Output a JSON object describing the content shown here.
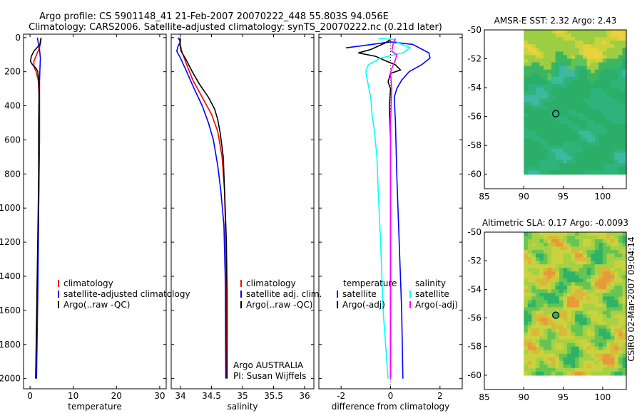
{
  "header": {
    "title_line1": "Argo profile: CS 5901148_41 21-Feb-2007 20070222_448 55.803S 94.056E",
    "title_line2": "Climatology: CARS2006. Satellite-adjusted climatology: synTS_20070222.nc (0.21d later)"
  },
  "side_label": "CSIRO 02-Mar-2007 09:04:14",
  "colors": {
    "climatology": "#ff0000",
    "satellite": "#0000ff",
    "argo": "#000000",
    "sal_satellite": "#00ffff",
    "sal_argo": "#ff00ff"
  },
  "chart_data": [
    {
      "type": "line",
      "name": "temperature-profile",
      "xlabel": "temperature",
      "ylabel": "",
      "xlim": [
        -1.5,
        31.5
      ],
      "ylim": [
        2060,
        -20
      ],
      "xticks": [
        0,
        10,
        20,
        30
      ],
      "yticks": [
        0,
        200,
        400,
        600,
        800,
        1000,
        1200,
        1400,
        1600,
        1800,
        2000
      ],
      "legend": [
        "climatology",
        "satellite-adjusted climatology",
        "Argo(..raw -QC)"
      ],
      "series": [
        {
          "name": "climatology",
          "color": "red",
          "points": [
            [
              2.6,
              0
            ],
            [
              2.5,
              20
            ],
            [
              2.2,
              60
            ],
            [
              1.5,
              100
            ],
            [
              0.9,
              140
            ],
            [
              0.9,
              170
            ],
            [
              1.4,
              200
            ],
            [
              1.9,
              250
            ],
            [
              2.1,
              350
            ],
            [
              2.1,
              600
            ],
            [
              2.0,
              1000
            ],
            [
              1.7,
              1500
            ],
            [
              1.4,
              2000
            ]
          ]
        },
        {
          "name": "satellite-adjusted climatology",
          "color": "blue",
          "points": [
            [
              1.7,
              0
            ],
            [
              1.9,
              30
            ],
            [
              2.2,
              70
            ],
            [
              2.4,
              120
            ],
            [
              2.3,
              180
            ],
            [
              2.2,
              260
            ],
            [
              2.2,
              400
            ],
            [
              2.2,
              600
            ],
            [
              2.1,
              800
            ],
            [
              2.0,
              1000
            ],
            [
              1.8,
              1500
            ],
            [
              1.5,
              2000
            ]
          ]
        },
        {
          "name": "Argo(..raw -QC)",
          "color": "black",
          "points": [
            [
              2.5,
              5
            ],
            [
              2.3,
              40
            ],
            [
              0.9,
              80
            ],
            [
              0.3,
              110
            ],
            [
              0.1,
              140
            ],
            [
              0.6,
              160
            ],
            [
              1.4,
              180
            ],
            [
              1.8,
              200
            ],
            [
              2.0,
              250
            ],
            [
              2.1,
              300
            ],
            [
              2.0,
              500
            ],
            [
              2.0,
              800
            ],
            [
              1.9,
              1000
            ],
            [
              1.6,
              1500
            ],
            [
              1.3,
              2000
            ]
          ]
        }
      ]
    },
    {
      "type": "line",
      "name": "salinity-profile",
      "xlabel": "salinity",
      "ylabel": "",
      "xlim": [
        33.85,
        36.15
      ],
      "ylim": [
        2060,
        -20
      ],
      "xticks": [
        34,
        34.5,
        35,
        35.5,
        36
      ],
      "xticklabels": [
        "34",
        "34.5",
        "35",
        "35.5",
        "36"
      ],
      "legend": [
        "climatology",
        "satellite adj. clim.",
        "Argo(..raw -QC)"
      ],
      "annotation": [
        "Argo AUSTRALIA",
        "PI: Susan Wijffels"
      ],
      "series": [
        {
          "name": "climatology",
          "color": "red",
          "points": [
            [
              33.99,
              0
            ],
            [
              33.99,
              30
            ],
            [
              34.02,
              80
            ],
            [
              34.09,
              150
            ],
            [
              34.2,
              250
            ],
            [
              34.35,
              350
            ],
            [
              34.5,
              450
            ],
            [
              34.6,
              550
            ],
            [
              34.67,
              700
            ],
            [
              34.71,
              900
            ],
            [
              34.73,
              1200
            ],
            [
              34.74,
              1500
            ],
            [
              34.74,
              2000
            ]
          ]
        },
        {
          "name": "satellite adj. clim.",
          "color": "blue",
          "points": [
            [
              33.96,
              0
            ],
            [
              34.0,
              25
            ],
            [
              33.96,
              50
            ],
            [
              33.94,
              80
            ],
            [
              34.0,
              120
            ],
            [
              34.1,
              200
            ],
            [
              34.22,
              300
            ],
            [
              34.35,
              400
            ],
            [
              34.45,
              500
            ],
            [
              34.53,
              600
            ],
            [
              34.6,
              750
            ],
            [
              34.65,
              900
            ],
            [
              34.7,
              1100
            ],
            [
              34.72,
              1400
            ],
            [
              34.73,
              2000
            ]
          ]
        },
        {
          "name": "Argo(..raw -QC)",
          "color": "black",
          "points": [
            [
              34.0,
              5
            ],
            [
              33.99,
              40
            ],
            [
              34.01,
              80
            ],
            [
              34.09,
              130
            ],
            [
              34.19,
              200
            ],
            [
              34.3,
              270
            ],
            [
              34.45,
              350
            ],
            [
              34.55,
              420
            ],
            [
              34.6,
              480
            ],
            [
              34.64,
              560
            ],
            [
              34.69,
              700
            ],
            [
              34.7,
              800
            ],
            [
              34.72,
              1000
            ],
            [
              34.74,
              1200
            ],
            [
              34.75,
              1500
            ],
            [
              34.75,
              1800
            ],
            [
              34.75,
              2000
            ]
          ]
        }
      ]
    },
    {
      "type": "line",
      "name": "difference-profile",
      "xlabel": "difference from climatology",
      "ylabel": "",
      "xlim": [
        -2.9,
        2.9
      ],
      "ylim": [
        2060,
        -20
      ],
      "xticks": [
        -2,
        0,
        2
      ],
      "legend_temperature_title": "temperature",
      "legend_salinity_title": "salinity",
      "legend_temperature": [
        "satellite",
        "Argo(-adj)"
      ],
      "legend_salinity": [
        "satellite",
        "Argo(-adj)"
      ],
      "series": [
        {
          "name": "temperature satellite",
          "color": "blue",
          "points": [
            [
              -1.8,
              60
            ],
            [
              -1.0,
              45
            ],
            [
              0.0,
              25
            ],
            [
              0.9,
              40
            ],
            [
              1.55,
              90
            ],
            [
              1.6,
              120
            ],
            [
              1.25,
              160
            ],
            [
              0.75,
              200
            ],
            [
              0.45,
              250
            ],
            [
              0.25,
              300
            ],
            [
              0.15,
              350
            ],
            [
              0.2,
              500
            ],
            [
              0.25,
              800
            ],
            [
              0.35,
              1200
            ],
            [
              0.45,
              1600
            ],
            [
              0.5,
              2000
            ]
          ]
        },
        {
          "name": "temperature Argo(-adj)",
          "color": "black",
          "points": [
            [
              0.0,
              10
            ],
            [
              -0.2,
              30
            ],
            [
              -0.8,
              70
            ],
            [
              -1.3,
              90
            ],
            [
              -0.6,
              110
            ],
            [
              -0.3,
              130
            ],
            [
              0.2,
              160
            ],
            [
              0.4,
              190
            ],
            [
              0.0,
              210
            ],
            [
              -0.1,
              260
            ],
            [
              0.0,
              300
            ],
            [
              -0.05,
              400
            ],
            [
              0.0,
              600
            ],
            [
              0.0,
              1000
            ],
            [
              0.0,
              2000
            ]
          ]
        },
        {
          "name": "salinity satellite",
          "color": "cyan",
          "points": [
            [
              -0.5,
              5
            ],
            [
              0.1,
              10
            ],
            [
              0.3,
              30
            ],
            [
              0.8,
              60
            ],
            [
              0.5,
              90
            ],
            [
              -0.4,
              120
            ],
            [
              -0.9,
              160
            ],
            [
              -1.0,
              200
            ],
            [
              -0.9,
              280
            ],
            [
              -0.8,
              350
            ],
            [
              -0.75,
              450
            ],
            [
              -0.65,
              550
            ],
            [
              -0.55,
              700
            ],
            [
              -0.5,
              900
            ],
            [
              -0.4,
              1200
            ],
            [
              -0.3,
              1600
            ],
            [
              -0.1,
              2000
            ]
          ]
        },
        {
          "name": "salinity Argo(-adj)",
          "color": "magenta",
          "points": [
            [
              0.2,
              5
            ],
            [
              0.1,
              40
            ],
            [
              0.05,
              80
            ],
            [
              0.25,
              100
            ],
            [
              0.2,
              130
            ],
            [
              0.0,
              200
            ],
            [
              0.05,
              300
            ],
            [
              0.0,
              500
            ],
            [
              0.0,
              1000
            ],
            [
              0.0,
              2000
            ]
          ]
        }
      ]
    },
    {
      "type": "heatmap",
      "name": "amsre-sst-map",
      "title": "AMSR-E SST: 2.32 Argo: 2.43",
      "xlim": [
        85,
        103
      ],
      "ylim": [
        -61,
        -50
      ],
      "xticks": [
        85,
        90,
        95,
        100
      ],
      "yticks": [
        -50,
        -52,
        -54,
        -56,
        -58,
        -60
      ],
      "data_extent_lon": [
        90,
        103
      ],
      "data_extent_lat": [
        -60,
        -50
      ],
      "marker": {
        "lon": 94.056,
        "lat": -55.803,
        "filled": false
      }
    },
    {
      "type": "heatmap",
      "name": "altimetric-sla-map",
      "title": "Altimetric SLA: 0.17 Argo: -0.0093",
      "xlim": [
        85,
        103
      ],
      "ylim": [
        -61,
        -50
      ],
      "xticks": [
        85,
        90,
        95,
        100
      ],
      "yticks": [
        -50,
        -52,
        -54,
        -56,
        -58,
        -60
      ],
      "data_extent_lon": [
        90,
        103
      ],
      "data_extent_lat": [
        -60,
        -50
      ],
      "marker": {
        "lon": 94.056,
        "lat": -55.803,
        "filled": true
      }
    }
  ]
}
